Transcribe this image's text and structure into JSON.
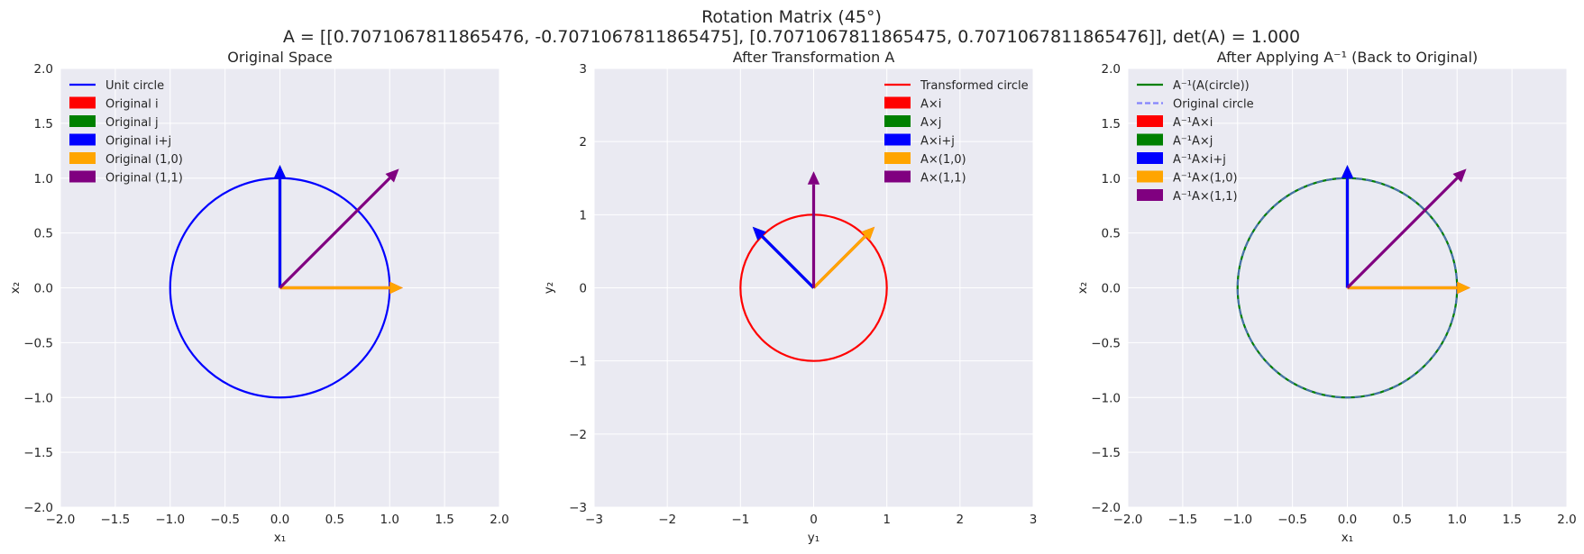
{
  "figure": {
    "title_line1": "Rotation Matrix (45°)",
    "title_line2": "A = [[0.7071067811865476, -0.7071067811865475], [0.7071067811865475, 0.7071067811865476]], det(A) = 1.000"
  },
  "colors": {
    "background": "#eaeaf2",
    "grid": "#ffffff",
    "red": "#ff0000",
    "green": "#008000",
    "blue": "#0000ff",
    "orange": "#ffa500",
    "purple": "#800080",
    "unit_circle": "#0000ff",
    "transformed_circle": "#ff0000",
    "restored_circle": "#008000",
    "original_circle_dashed": "#6a6aff"
  },
  "chart_data": [
    {
      "type": "line",
      "title": "Original Space",
      "xlabel": "x₁",
      "ylabel": "x₂",
      "xlim": [
        -2,
        2
      ],
      "ylim": [
        -2,
        2
      ],
      "xticks": [
        "−2.0",
        "−1.5",
        "−1.0",
        "−0.5",
        "0.0",
        "0.5",
        "1.0",
        "1.5",
        "2.0"
      ],
      "xtick_values": [
        -2,
        -1.5,
        -1,
        -0.5,
        0,
        0.5,
        1,
        1.5,
        2
      ],
      "yticks": [
        "−2.0",
        "−1.5",
        "−1.0",
        "−0.5",
        "0.0",
        "0.5",
        "1.0",
        "1.5",
        "2.0"
      ],
      "ytick_values": [
        -2,
        -1.5,
        -1,
        -0.5,
        0,
        0.5,
        1,
        1.5,
        2
      ],
      "grid": true,
      "legend_position": "top-left",
      "circles": [
        {
          "name": "Unit circle",
          "radius": 1,
          "color": "#0000ff",
          "style": "solid"
        }
      ],
      "vectors": [
        {
          "name": "Original i",
          "x": 1,
          "y": 0,
          "color": "#ff0000"
        },
        {
          "name": "Original j",
          "x": 0,
          "y": 1,
          "color": "#008000"
        },
        {
          "name": "Original i+j",
          "x": 0,
          "y": 1,
          "color": "#0000ff"
        },
        {
          "name": "Original (1,0)",
          "x": 1,
          "y": 0,
          "color": "#ffa500"
        },
        {
          "name": "Original (1,1)",
          "x": 1,
          "y": 1,
          "color": "#800080"
        }
      ]
    },
    {
      "type": "line",
      "title": "After Transformation A",
      "xlabel": "y₁",
      "ylabel": "y₂",
      "xlim": [
        -3,
        3
      ],
      "ylim": [
        -3,
        3
      ],
      "xticks": [
        "−3",
        "−2",
        "−1",
        "0",
        "1",
        "2",
        "3"
      ],
      "xtick_values": [
        -3,
        -2,
        -1,
        0,
        1,
        2,
        3
      ],
      "yticks": [
        "−3",
        "−2",
        "−1",
        "0",
        "1",
        "2",
        "3"
      ],
      "ytick_values": [
        -3,
        -2,
        -1,
        0,
        1,
        2,
        3
      ],
      "grid": true,
      "legend_position": "top-right",
      "circles": [
        {
          "name": "Transformed circle",
          "radius": 1,
          "color": "#ff0000",
          "style": "solid"
        }
      ],
      "vectors": [
        {
          "name": "A×i",
          "x": 0.7071,
          "y": 0.7071,
          "color": "#ff0000"
        },
        {
          "name": "A×j",
          "x": -0.7071,
          "y": 0.7071,
          "color": "#008000"
        },
        {
          "name": "A×i+j",
          "x": -0.7071,
          "y": 0.7071,
          "color": "#0000ff"
        },
        {
          "name": "A×(1,0)",
          "x": 0.7071,
          "y": 0.7071,
          "color": "#ffa500"
        },
        {
          "name": "A×(1,1)",
          "x": 0,
          "y": 1.4142,
          "color": "#800080"
        }
      ]
    },
    {
      "type": "line",
      "title": "After Applying A⁻¹ (Back to Original)",
      "xlabel": "x₁",
      "ylabel": "x₂",
      "xlim": [
        -2,
        2
      ],
      "ylim": [
        -2,
        2
      ],
      "xticks": [
        "−2.0",
        "−1.5",
        "−1.0",
        "−0.5",
        "0.0",
        "0.5",
        "1.0",
        "1.5",
        "2.0"
      ],
      "xtick_values": [
        -2,
        -1.5,
        -1,
        -0.5,
        0,
        0.5,
        1,
        1.5,
        2
      ],
      "yticks": [
        "−2.0",
        "−1.5",
        "−1.0",
        "−0.5",
        "0.0",
        "0.5",
        "1.0",
        "1.5",
        "2.0"
      ],
      "ytick_values": [
        -2,
        -1.5,
        -1,
        -0.5,
        0,
        0.5,
        1,
        1.5,
        2
      ],
      "grid": true,
      "legend_position": "top-left",
      "circles": [
        {
          "name": "A⁻¹(A(circle))",
          "radius": 1,
          "color": "#008000",
          "style": "solid"
        },
        {
          "name": "Original circle",
          "radius": 1,
          "color": "#6a6aff",
          "style": "dashed"
        }
      ],
      "vectors": [
        {
          "name": "A⁻¹A×i",
          "x": 1,
          "y": 0,
          "color": "#ff0000"
        },
        {
          "name": "A⁻¹A×j",
          "x": 0,
          "y": 1,
          "color": "#008000"
        },
        {
          "name": "A⁻¹A×i+j",
          "x": 0,
          "y": 1,
          "color": "#0000ff"
        },
        {
          "name": "A⁻¹A×(1,0)",
          "x": 1,
          "y": 0,
          "color": "#ffa500"
        },
        {
          "name": "A⁻¹A×(1,1)",
          "x": 1,
          "y": 1,
          "color": "#800080"
        }
      ]
    }
  ]
}
